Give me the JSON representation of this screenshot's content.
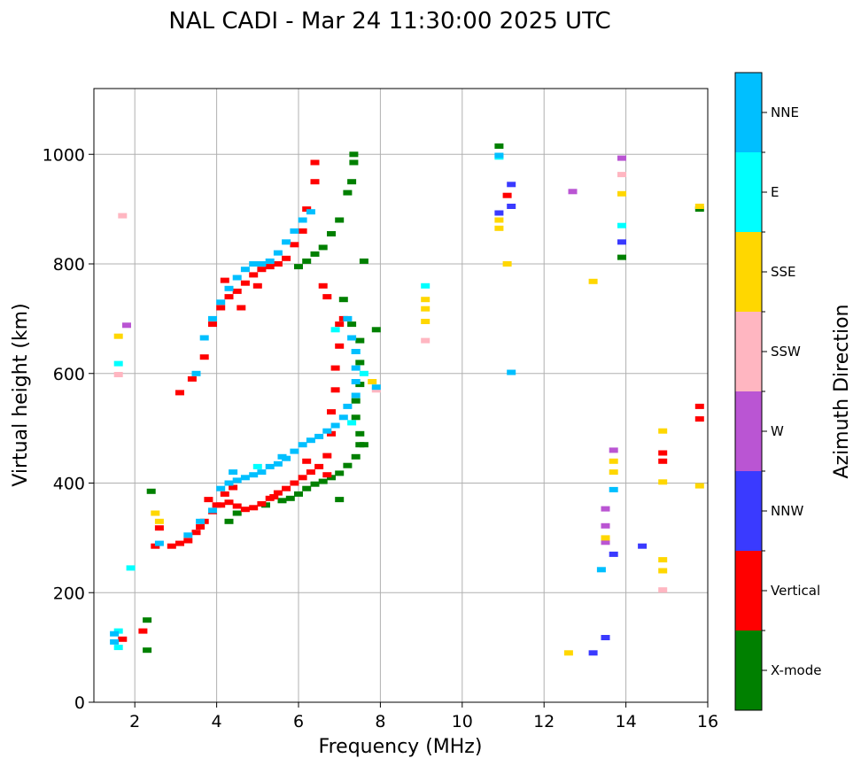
{
  "chart_data": {
    "type": "scatter",
    "title": "NAL CADI - Mar 24 11:30:00 2025 UTC",
    "xlabel": "Frequency (MHz)",
    "ylabel": "Virtual height (km)",
    "xlim": [
      1,
      16
    ],
    "ylim": [
      0,
      1120
    ],
    "xticks": [
      2,
      4,
      6,
      8,
      10,
      12,
      14,
      16
    ],
    "yticks": [
      0,
      200,
      400,
      600,
      800,
      1000
    ],
    "grid": true,
    "colorbar": {
      "label": "Azimuth Direction",
      "entries": [
        {
          "name": "X-mode",
          "color": "#008000"
        },
        {
          "name": "Vertical",
          "color": "#ff0000"
        },
        {
          "name": "NNW",
          "color": "#3a3aff"
        },
        {
          "name": "W",
          "color": "#ba55d3"
        },
        {
          "name": "SSW",
          "color": "#ffb6c1"
        },
        {
          "name": "SSE",
          "color": "#ffd700"
        },
        {
          "name": "E",
          "color": "#00ffff"
        },
        {
          "name": "NNE",
          "color": "#00bfff"
        }
      ]
    },
    "series": [
      {
        "name": "X-mode",
        "points": [
          [
            2.3,
            95
          ],
          [
            2.3,
            150
          ],
          [
            2.4,
            385
          ],
          [
            4.3,
            330
          ],
          [
            4.5,
            345
          ],
          [
            5.2,
            360
          ],
          [
            5.6,
            368
          ],
          [
            5.8,
            372
          ],
          [
            6.0,
            380
          ],
          [
            6.2,
            390
          ],
          [
            6.4,
            398
          ],
          [
            6.6,
            403
          ],
          [
            6.8,
            410
          ],
          [
            7.0,
            418
          ],
          [
            7.2,
            432
          ],
          [
            7.4,
            448
          ],
          [
            7.5,
            470
          ],
          [
            7.5,
            490
          ],
          [
            7.4,
            520
          ],
          [
            7.4,
            550
          ],
          [
            7.5,
            580
          ],
          [
            7.5,
            620
          ],
          [
            7.5,
            660
          ],
          [
            7.3,
            690
          ],
          [
            7.1,
            735
          ],
          [
            7.6,
            805
          ],
          [
            6.0,
            795
          ],
          [
            6.2,
            805
          ],
          [
            6.4,
            818
          ],
          [
            6.6,
            830
          ],
          [
            6.8,
            855
          ],
          [
            7.0,
            880
          ],
          [
            7.2,
            930
          ],
          [
            7.3,
            950
          ],
          [
            7.35,
            985
          ],
          [
            7.35,
            1000
          ],
          [
            10.9,
            1015
          ],
          [
            13.9,
            812
          ],
          [
            15.8,
            900
          ],
          [
            7.6,
            470
          ],
          [
            7.0,
            370
          ],
          [
            7.9,
            680
          ]
        ]
      },
      {
        "name": "Vertical",
        "points": [
          [
            1.7,
            115
          ],
          [
            2.2,
            130
          ],
          [
            2.5,
            285
          ],
          [
            2.6,
            318
          ],
          [
            2.9,
            285
          ],
          [
            3.1,
            290
          ],
          [
            3.3,
            295
          ],
          [
            3.5,
            310
          ],
          [
            3.7,
            330
          ],
          [
            3.9,
            348
          ],
          [
            4.1,
            360
          ],
          [
            4.3,
            365
          ],
          [
            4.5,
            358
          ],
          [
            4.7,
            352
          ],
          [
            4.9,
            355
          ],
          [
            5.1,
            362
          ],
          [
            5.3,
            372
          ],
          [
            5.5,
            382
          ],
          [
            5.7,
            390
          ],
          [
            5.9,
            400
          ],
          [
            6.1,
            410
          ],
          [
            6.3,
            420
          ],
          [
            6.5,
            430
          ],
          [
            6.7,
            450
          ],
          [
            6.8,
            490
          ],
          [
            6.8,
            530
          ],
          [
            6.9,
            570
          ],
          [
            6.9,
            610
          ],
          [
            7.0,
            650
          ],
          [
            7.0,
            690
          ],
          [
            6.6,
            760
          ],
          [
            6.7,
            740
          ],
          [
            7.1,
            700
          ],
          [
            4.0,
            360
          ],
          [
            4.2,
            380
          ],
          [
            4.4,
            392
          ],
          [
            3.1,
            565
          ],
          [
            3.4,
            590
          ],
          [
            3.7,
            630
          ],
          [
            3.9,
            690
          ],
          [
            4.1,
            720
          ],
          [
            4.3,
            740
          ],
          [
            4.5,
            750
          ],
          [
            4.7,
            765
          ],
          [
            4.9,
            780
          ],
          [
            5.1,
            790
          ],
          [
            5.3,
            795
          ],
          [
            5.5,
            800
          ],
          [
            5.7,
            810
          ],
          [
            5.9,
            835
          ],
          [
            6.1,
            860
          ],
          [
            6.2,
            900
          ],
          [
            6.4,
            950
          ],
          [
            6.4,
            985
          ],
          [
            4.2,
            770
          ],
          [
            4.6,
            720
          ],
          [
            5.0,
            760
          ],
          [
            3.8,
            370
          ],
          [
            3.6,
            320
          ],
          [
            14.9,
            440
          ],
          [
            14.9,
            455
          ],
          [
            15.8,
            540
          ],
          [
            15.8,
            517
          ],
          [
            11.1,
            925
          ],
          [
            5.4,
            375
          ],
          [
            6.2,
            440
          ],
          [
            6.7,
            415
          ]
        ]
      },
      {
        "name": "NNW",
        "points": [
          [
            13.5,
            118
          ],
          [
            13.2,
            90
          ],
          [
            13.7,
            270
          ],
          [
            14.4,
            285
          ],
          [
            13.9,
            840
          ],
          [
            11.2,
            905
          ],
          [
            11.2,
            945
          ],
          [
            10.9,
            893
          ]
        ]
      },
      {
        "name": "W",
        "points": [
          [
            13.5,
            292
          ],
          [
            13.5,
            353
          ],
          [
            13.5,
            322
          ],
          [
            12.7,
            932
          ],
          [
            13.9,
            993
          ],
          [
            13.7,
            460
          ],
          [
            1.8,
            688
          ]
        ]
      },
      {
        "name": "SSW",
        "points": [
          [
            1.6,
            598
          ],
          [
            1.7,
            888
          ],
          [
            9.1,
            660
          ],
          [
            14.9,
            205
          ],
          [
            13.9,
            963
          ],
          [
            7.9,
            570
          ]
        ]
      },
      {
        "name": "SSE",
        "points": [
          [
            2.5,
            345
          ],
          [
            2.6,
            330
          ],
          [
            9.1,
            695
          ],
          [
            9.1,
            718
          ],
          [
            9.1,
            735
          ],
          [
            10.9,
            865
          ],
          [
            10.9,
            880
          ],
          [
            13.7,
            440
          ],
          [
            13.7,
            420
          ],
          [
            13.5,
            300
          ],
          [
            14.9,
            260
          ],
          [
            14.9,
            240
          ],
          [
            14.9,
            402
          ],
          [
            14.9,
            495
          ],
          [
            12.6,
            90
          ],
          [
            13.2,
            768
          ],
          [
            15.8,
            395
          ],
          [
            15.8,
            905
          ],
          [
            13.9,
            928
          ],
          [
            11.1,
            800
          ],
          [
            1.6,
            668
          ],
          [
            7.8,
            585
          ]
        ]
      },
      {
        "name": "E",
        "points": [
          [
            1.6,
            100
          ],
          [
            1.9,
            245
          ],
          [
            1.6,
            618
          ],
          [
            13.9,
            870
          ],
          [
            6.9,
            680
          ],
          [
            7.4,
            640
          ],
          [
            7.6,
            600
          ],
          [
            5.0,
            430
          ],
          [
            7.3,
            510
          ],
          [
            1.6,
            130
          ],
          [
            9.1,
            760
          ],
          [
            10.9,
            995
          ]
        ]
      },
      {
        "name": "NNE",
        "points": [
          [
            1.5,
            110
          ],
          [
            1.5,
            125
          ],
          [
            2.6,
            290
          ],
          [
            3.3,
            305
          ],
          [
            3.6,
            330
          ],
          [
            3.9,
            350
          ],
          [
            4.1,
            390
          ],
          [
            4.3,
            400
          ],
          [
            4.5,
            405
          ],
          [
            4.7,
            410
          ],
          [
            4.9,
            415
          ],
          [
            5.1,
            420
          ],
          [
            5.3,
            430
          ],
          [
            5.5,
            435
          ],
          [
            5.7,
            445
          ],
          [
            5.9,
            458
          ],
          [
            6.1,
            470
          ],
          [
            6.3,
            478
          ],
          [
            6.5,
            485
          ],
          [
            6.7,
            495
          ],
          [
            6.9,
            505
          ],
          [
            7.1,
            520
          ],
          [
            7.2,
            540
          ],
          [
            7.4,
            560
          ],
          [
            7.4,
            585
          ],
          [
            7.4,
            610
          ],
          [
            7.4,
            640
          ],
          [
            7.3,
            665
          ],
          [
            7.2,
            700
          ],
          [
            3.5,
            600
          ],
          [
            3.7,
            665
          ],
          [
            3.9,
            700
          ],
          [
            4.1,
            730
          ],
          [
            4.3,
            755
          ],
          [
            4.5,
            775
          ],
          [
            4.7,
            790
          ],
          [
            4.9,
            800
          ],
          [
            5.1,
            800
          ],
          [
            5.3,
            805
          ],
          [
            5.5,
            820
          ],
          [
            5.7,
            840
          ],
          [
            5.9,
            860
          ],
          [
            6.1,
            880
          ],
          [
            6.3,
            895
          ],
          [
            13.4,
            242
          ],
          [
            13.7,
            388
          ],
          [
            11.2,
            602
          ],
          [
            10.9,
            998
          ],
          [
            7.9,
            575
          ],
          [
            4.4,
            420
          ],
          [
            5.6,
            448
          ]
        ]
      }
    ]
  }
}
